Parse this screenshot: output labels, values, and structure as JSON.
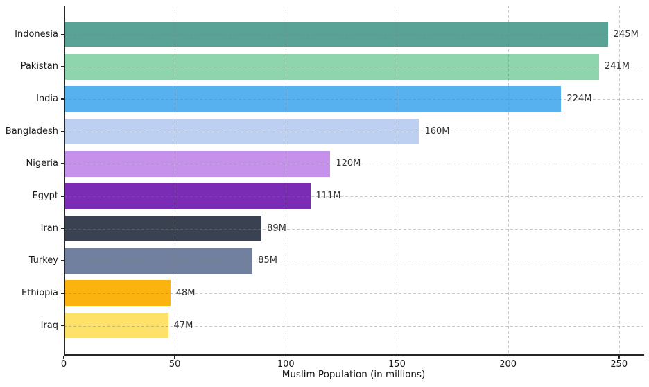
{
  "chart_data": {
    "type": "bar",
    "orientation": "horizontal",
    "title": "",
    "xlabel": "Muslim Population (in millions)",
    "ylabel": "",
    "categories": [
      "Indonesia",
      "Pakistan",
      "India",
      "Bangladesh",
      "Nigeria",
      "Egypt",
      "Iran",
      "Turkey",
      "Ethiopia",
      "Iraq"
    ],
    "values": [
      245,
      241,
      224,
      160,
      120,
      111,
      89,
      85,
      48,
      47
    ],
    "bar_labels": [
      "245M",
      "241M",
      "224M",
      "160M",
      "120M",
      "111M",
      "89M",
      "85M",
      "48M",
      "47M"
    ],
    "bar_colors": [
      "#58a396",
      "#8ed5ad",
      "#58b1ef",
      "#bdd0f2",
      "#c691eb",
      "#7b2cb5",
      "#3a4150",
      "#71809e",
      "#fbb40f",
      "#fde169"
    ],
    "xticks": [
      0,
      50,
      100,
      150,
      200,
      250
    ],
    "xtick_labels": [
      "0",
      "50",
      "100",
      "150",
      "200",
      "250"
    ],
    "xlim": [
      0,
      261
    ],
    "grid": "dashed",
    "legend": "none",
    "axis_color": "#262626",
    "grid_color": "#c9c9c9",
    "value_label_color": "#333333"
  }
}
